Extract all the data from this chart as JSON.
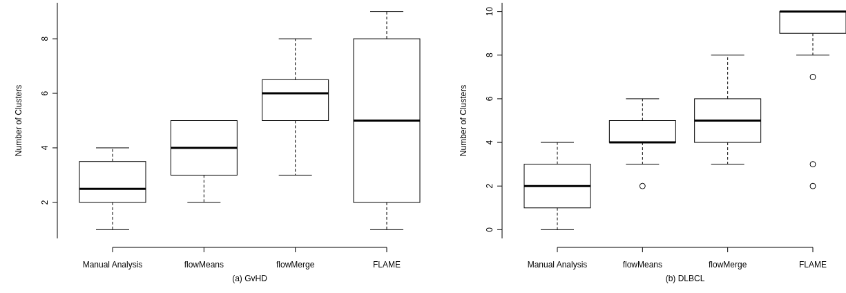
{
  "chart_data": [
    {
      "type": "box",
      "xlabel": "(a) GvHD",
      "ylabel": "Number of Clusters",
      "categories": [
        "Manual Analysis",
        "flowMeans",
        "flowMerge",
        "FLAME"
      ],
      "ylim": [
        0.68,
        9.32
      ],
      "yticks": [
        2,
        4,
        6,
        8
      ],
      "color": "#000000",
      "boxes": [
        {
          "low": 1,
          "q1": 2,
          "median": 2.5,
          "q3": 3.5,
          "high": 4
        },
        {
          "low": 2,
          "q1": 3,
          "median": 4,
          "q3": 5,
          "high": 5
        },
        {
          "low": 3,
          "q1": 5,
          "median": 6,
          "q3": 6.5,
          "high": 8
        },
        {
          "low": 1,
          "q1": 2,
          "median": 5,
          "q3": 8,
          "high": 9
        }
      ]
    },
    {
      "type": "box",
      "xlabel": "(b) DLBCL",
      "ylabel": "Number of Clusters",
      "categories": [
        "Manual Analysis",
        "flowMeans",
        "flowMerge",
        "FLAME"
      ],
      "ylim": [
        -0.4,
        10.4
      ],
      "yticks": [
        0,
        2,
        4,
        6,
        8,
        10
      ],
      "color": "#000000",
      "boxes": [
        {
          "low": 0,
          "q1": 1,
          "median": 2,
          "q3": 3,
          "high": 4
        },
        {
          "low": 3,
          "q1": 4,
          "median": 4,
          "q3": 5,
          "high": 6,
          "outliers": [
            2
          ]
        },
        {
          "low": 3,
          "q1": 4,
          "median": 5,
          "q3": 6,
          "high": 8
        },
        {
          "low": 8,
          "q1": 9,
          "median": 10,
          "q3": 10,
          "high": 10,
          "outliers": [
            7,
            3,
            2
          ]
        }
      ]
    }
  ]
}
